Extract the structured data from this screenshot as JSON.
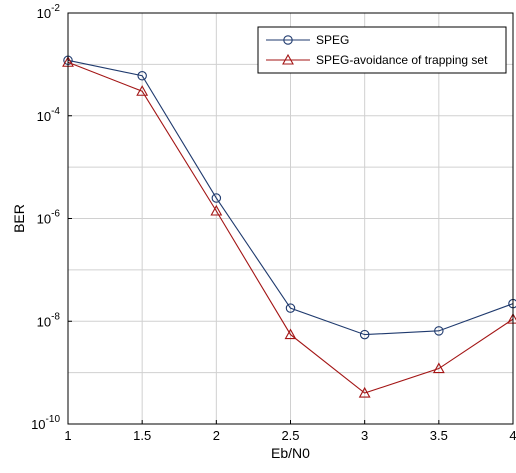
{
  "chart_data": {
    "type": "line",
    "title": "",
    "xlabel": "Eb/N0",
    "ylabel": "BER",
    "x": [
      1,
      1.5,
      2,
      2.5,
      3,
      3.5,
      4
    ],
    "xlim": [
      1,
      4
    ],
    "ylim": [
      1e-10,
      0.01
    ],
    "yscale": "log",
    "grid": true,
    "legend_position": "top-right",
    "x_ticks": [
      {
        "value": 1,
        "label": "1"
      },
      {
        "value": 1.5,
        "label": "1.5"
      },
      {
        "value": 2,
        "label": "2"
      },
      {
        "value": 2.5,
        "label": "2.5"
      },
      {
        "value": 3,
        "label": "3"
      },
      {
        "value": 3.5,
        "label": "3.5"
      },
      {
        "value": 4,
        "label": "4"
      }
    ],
    "y_ticks": [
      {
        "value": 1e-10,
        "base": "10",
        "exp": "-10"
      },
      {
        "value": 1e-08,
        "base": "10",
        "exp": "-8"
      },
      {
        "value": 1e-06,
        "base": "10",
        "exp": "-6"
      },
      {
        "value": 0.0001,
        "base": "10",
        "exp": "-4"
      },
      {
        "value": 0.01,
        "base": "10",
        "exp": "-2"
      }
    ],
    "series": [
      {
        "name": "SPEG",
        "marker": "circle",
        "color": "#1f3a6e",
        "values": [
          0.0012,
          0.0006,
          2.5e-06,
          1.8e-08,
          5.5e-09,
          6.5e-09,
          2.2e-08
        ]
      },
      {
        "name": "SPEG-avoidance of trapping set",
        "marker": "triangle",
        "color": "#a31515",
        "values": [
          0.0011,
          0.0003,
          1.4e-06,
          5.5e-09,
          4e-10,
          1.2e-09,
          1.1e-08
        ]
      }
    ]
  }
}
